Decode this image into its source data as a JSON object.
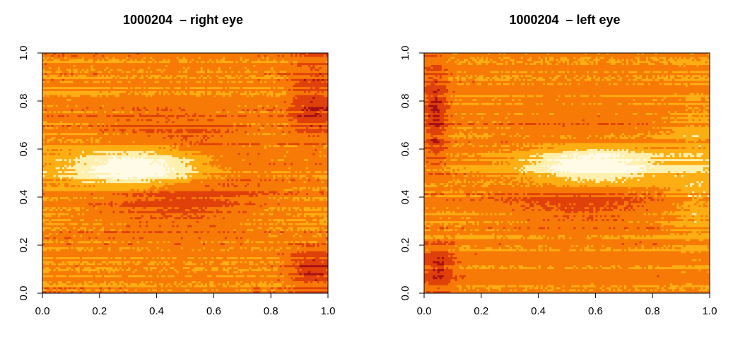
{
  "charts": [
    {
      "title": "1000204  – right eye"
    },
    {
      "title": "1000204  – left eye"
    }
  ],
  "chart_data": [
    {
      "type": "heatmap",
      "title": "1000204  – right eye",
      "xlabel": "",
      "ylabel": "",
      "xlim": [
        0,
        1
      ],
      "ylim": [
        0,
        1
      ],
      "xticks": [
        "0.0",
        "0.2",
        "0.4",
        "0.6",
        "0.8",
        "1.0"
      ],
      "yticks": [
        "0.0",
        "0.2",
        "0.4",
        "0.6",
        "0.8",
        "1.0"
      ],
      "colormap": "heat",
      "colors": [
        "#a50f15",
        "#e0400a",
        "#f87a06",
        "#fdae12",
        "#fff0b0",
        "#fffbe6"
      ],
      "blobs": [
        {
          "cx": 0.36,
          "cy": 0.52,
          "rx": 0.38,
          "ry": 0.13,
          "value": 1.0
        },
        {
          "cx": 0.45,
          "cy": 0.5,
          "rx": 0.42,
          "ry": 0.28,
          "value": -0.45
        },
        {
          "cx": 0.95,
          "cy": 0.1,
          "rx": 0.12,
          "ry": 0.12,
          "value": -0.35
        },
        {
          "cx": 0.95,
          "cy": 0.8,
          "rx": 0.12,
          "ry": 0.25,
          "value": -0.3
        }
      ],
      "grid": false
    },
    {
      "type": "heatmap",
      "title": "1000204  – left eye",
      "xlabel": "",
      "ylabel": "",
      "xlim": [
        0,
        1
      ],
      "ylim": [
        0,
        1
      ],
      "xticks": [
        "0.0",
        "0.2",
        "0.4",
        "0.6",
        "0.8",
        "1.0"
      ],
      "yticks": [
        "0.0",
        "0.2",
        "0.4",
        "0.6",
        "0.8",
        "1.0"
      ],
      "colormap": "heat",
      "colors": [
        "#a50f15",
        "#e0400a",
        "#f87a06",
        "#fdae12",
        "#fff0b0",
        "#fffbe6"
      ],
      "blobs": [
        {
          "cx": 0.58,
          "cy": 0.53,
          "rx": 0.38,
          "ry": 0.13,
          "value": 1.0
        },
        {
          "cx": 0.55,
          "cy": 0.5,
          "rx": 0.4,
          "ry": 0.26,
          "value": -0.4
        },
        {
          "cx": 0.04,
          "cy": 0.75,
          "rx": 0.06,
          "ry": 0.3,
          "value": -0.35
        },
        {
          "cx": 0.05,
          "cy": 0.1,
          "rx": 0.08,
          "ry": 0.15,
          "value": -0.3
        },
        {
          "cx": 0.95,
          "cy": 0.5,
          "rx": 0.12,
          "ry": 0.5,
          "value": 0.15
        }
      ],
      "grid": false
    }
  ]
}
